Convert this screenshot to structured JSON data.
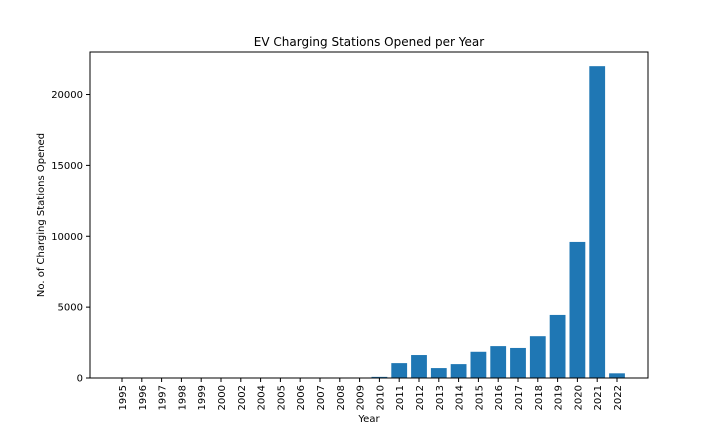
{
  "chart_data": {
    "type": "bar",
    "title": "EV Charging Stations Opened per Year",
    "xlabel": "Year",
    "ylabel": "No. of Charging Stations Opened",
    "categories": [
      "1995",
      "1996",
      "1997",
      "1998",
      "1999",
      "2000",
      "2002",
      "2004",
      "2005",
      "2006",
      "2007",
      "2008",
      "2009",
      "2010",
      "2011",
      "2012",
      "2013",
      "2014",
      "2015",
      "2016",
      "2017",
      "2018",
      "2019",
      "2020",
      "2021",
      "2022"
    ],
    "values": [
      2,
      1,
      1,
      1,
      2,
      3,
      1,
      2,
      2,
      2,
      5,
      6,
      10,
      80,
      1050,
      1620,
      700,
      980,
      1850,
      2250,
      2120,
      2950,
      4450,
      9600,
      22000,
      330
    ],
    "ylim": [
      0,
      23000
    ],
    "yticks": [
      0,
      5000,
      10000,
      15000,
      20000
    ],
    "bar_color": "#1f77b4",
    "grid": false,
    "legend": false
  }
}
